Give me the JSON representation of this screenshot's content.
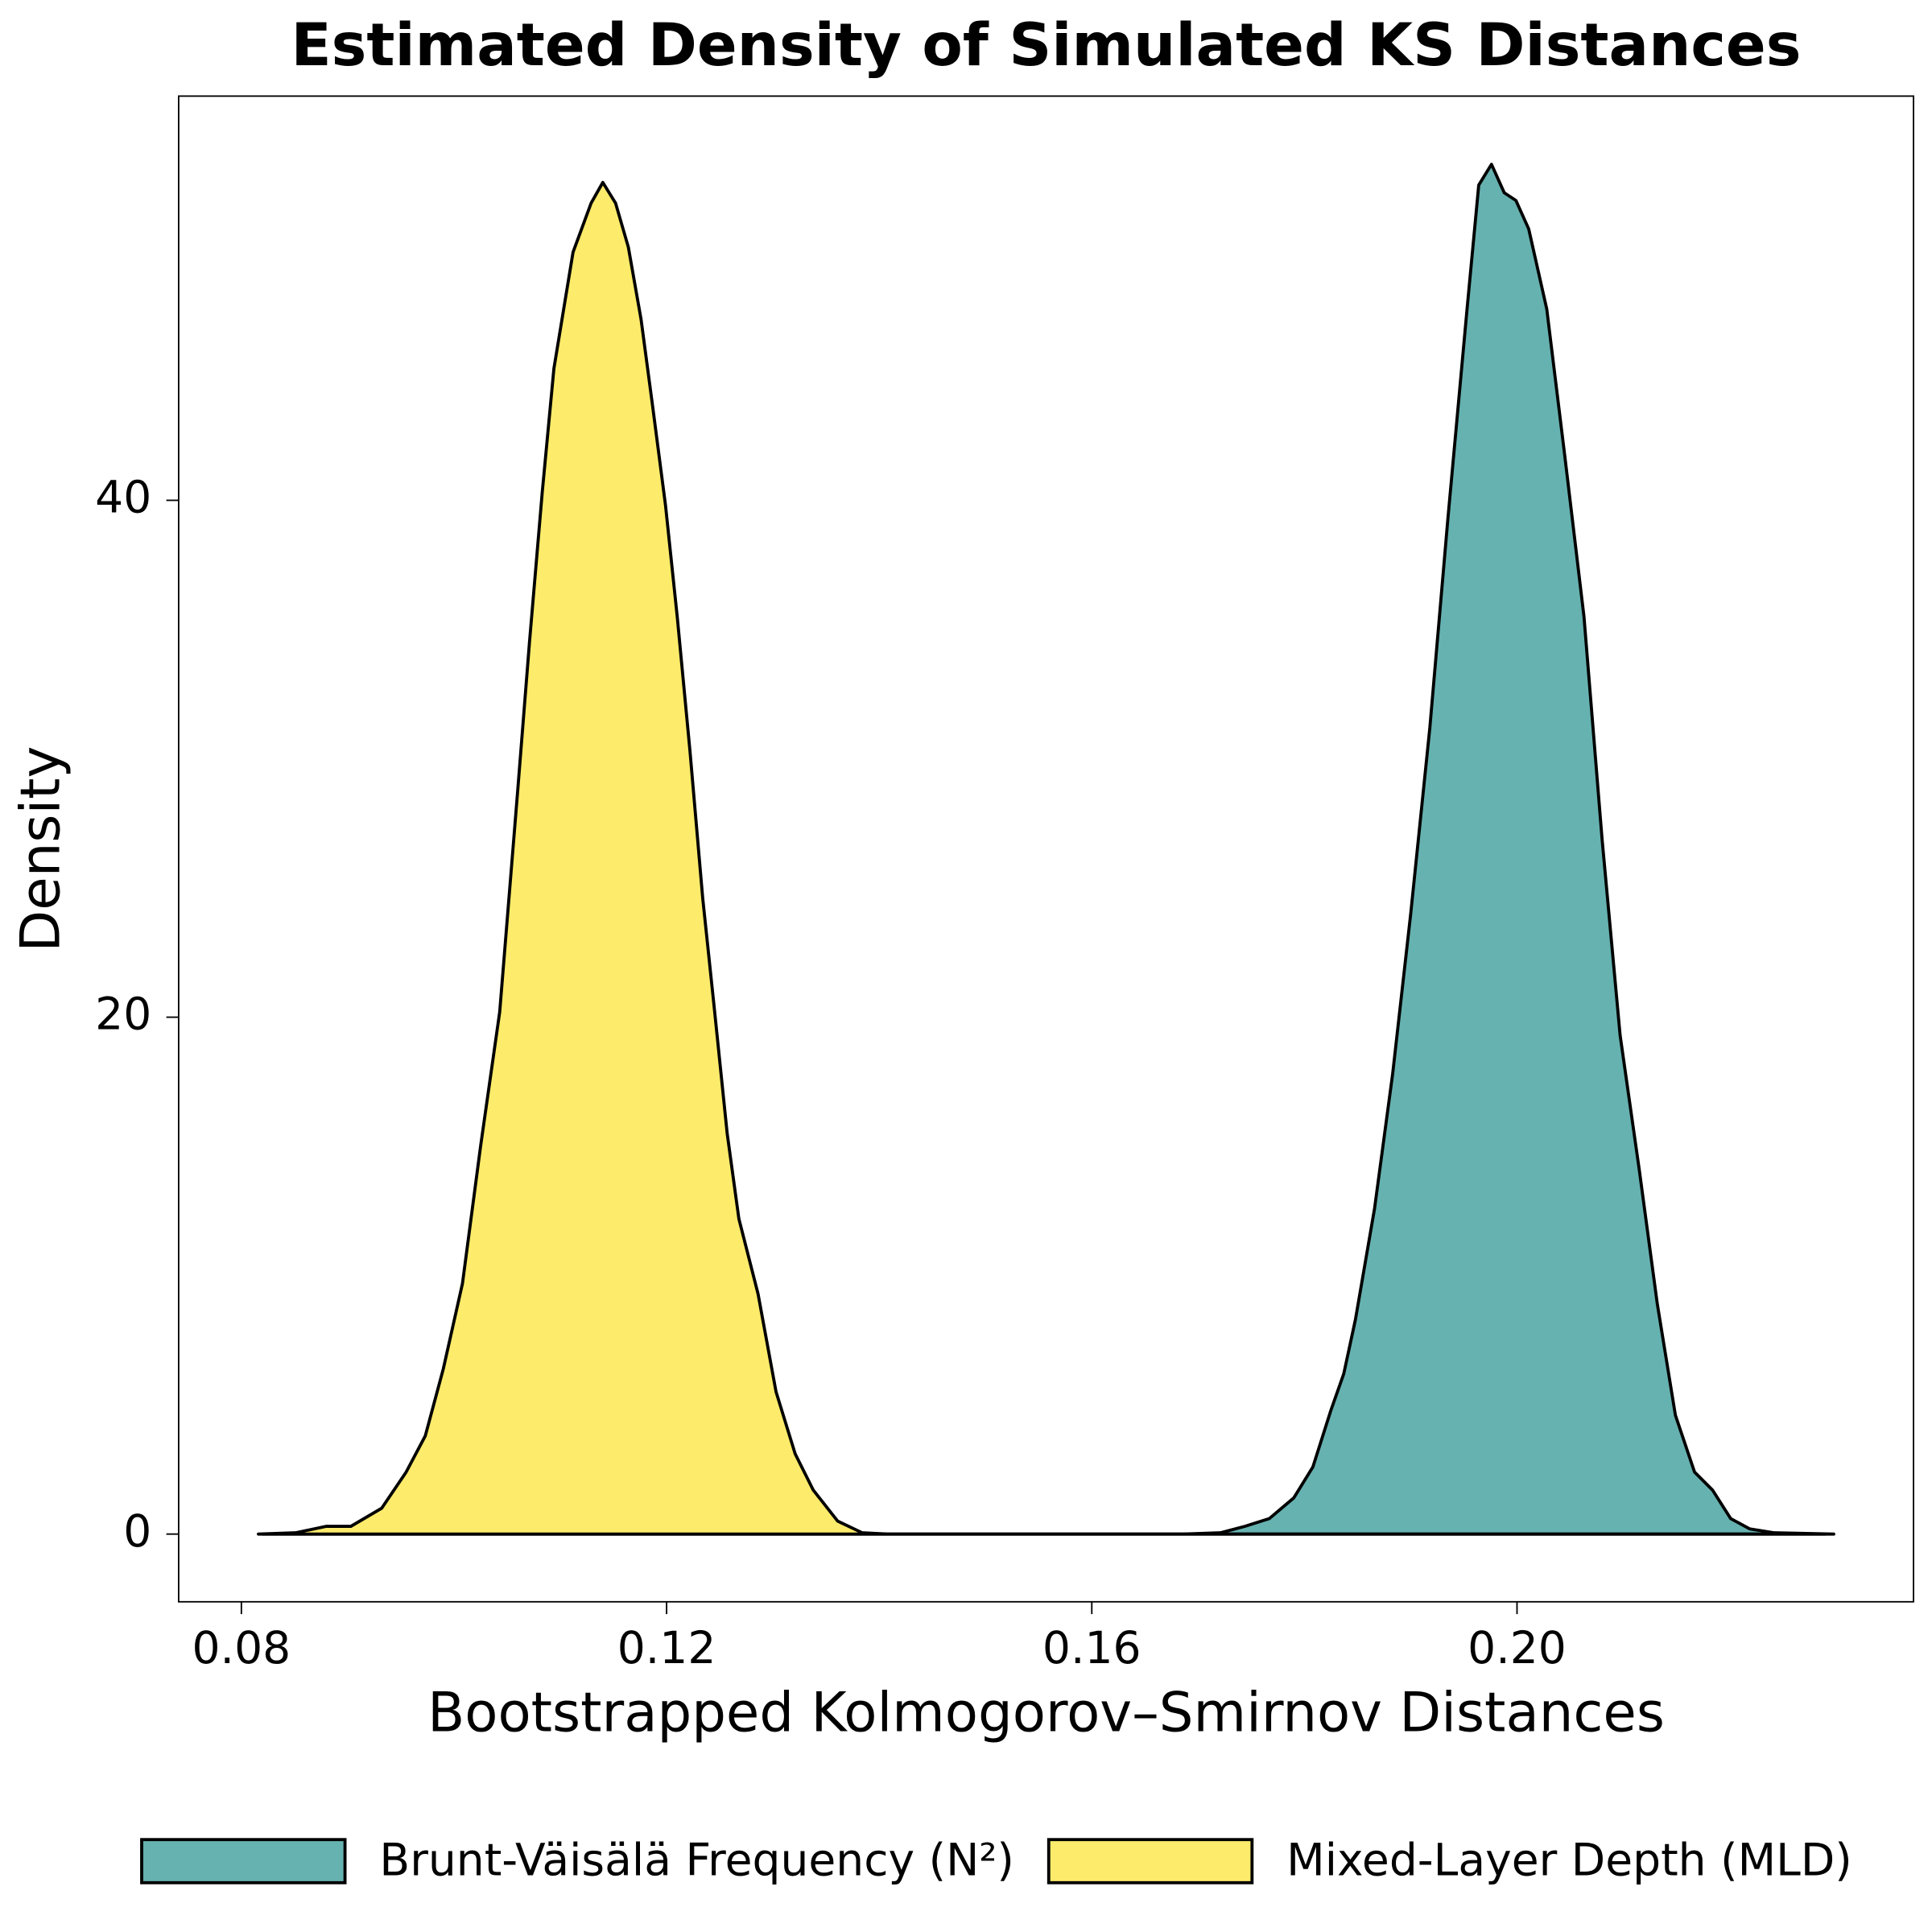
{
  "chart_data": {
    "type": "density",
    "title": "Estimated Density of Simulated KS Distances",
    "x_label": "Bootstrapped Kolmogorov–Smirnov Distances",
    "y_label": "Density",
    "xlim": [
      0.0741,
      0.2373
    ],
    "ylim": [
      -2.62,
      55.64
    ],
    "xticks": [
      0.08,
      0.12,
      0.16,
      {
        "value": 0.2,
        "label": "0.20"
      }
    ],
    "yticks": [
      0,
      20,
      40
    ],
    "legend": "bottom",
    "series": [
      {
        "name": "Brunt-Väisälä Frequency (N²)",
        "color": "#66b2b0",
        "x": [
          0.082,
          0.16,
          0.1686,
          0.1721,
          0.1744,
          0.1767,
          0.179,
          0.1808,
          0.1825,
          0.1837,
          0.1848,
          0.1866,
          0.1883,
          0.19,
          0.1918,
          0.1935,
          0.1953,
          0.1964,
          0.1976,
          0.1988,
          0.1999,
          0.2011,
          0.2028,
          0.2045,
          0.2063,
          0.208,
          0.2097,
          0.2115,
          0.2132,
          0.2149,
          0.2167,
          0.2184,
          0.2201,
          0.2219,
          0.2242,
          0.2298
        ],
        "values": [
          0,
          0,
          0,
          0.05,
          0.3,
          0.6,
          1.4,
          2.6,
          4.8,
          6.2,
          8.3,
          12.6,
          17.8,
          24.0,
          31.2,
          39.3,
          47.4,
          52.2,
          53.0,
          51.9,
          51.6,
          50.5,
          47.4,
          41.7,
          35.5,
          26.9,
          19.3,
          14.1,
          8.9,
          4.6,
          2.4,
          1.7,
          0.6,
          0.2,
          0.05,
          0
        ]
      },
      {
        "name": "Mixed-Layer Depth (MLD)",
        "color": "#fdeb6b",
        "x": [
          0.0816,
          0.0851,
          0.088,
          0.0903,
          0.0932,
          0.0955,
          0.0973,
          0.099,
          0.1008,
          0.1025,
          0.1043,
          0.106,
          0.1071,
          0.1083,
          0.1094,
          0.1112,
          0.1129,
          0.114,
          0.1152,
          0.1164,
          0.1176,
          0.1187,
          0.1199,
          0.121,
          0.1222,
          0.1234,
          0.1245,
          0.1257,
          0.1268,
          0.1286,
          0.1303,
          0.1321,
          0.1338,
          0.1361,
          0.1384,
          0.1408,
          0.16,
          0.229
        ],
        "values": [
          0,
          0.05,
          0.3,
          0.3,
          1.0,
          2.4,
          3.8,
          6.4,
          9.7,
          15.0,
          20.2,
          28.8,
          34.5,
          40.3,
          45.1,
          49.6,
          51.5,
          52.3,
          51.5,
          49.8,
          47.0,
          43.6,
          39.8,
          35.5,
          30.3,
          24.6,
          20.3,
          15.5,
          12.2,
          9.3,
          5.5,
          3.1,
          1.7,
          0.5,
          0.05,
          0,
          0,
          0
        ]
      }
    ]
  }
}
